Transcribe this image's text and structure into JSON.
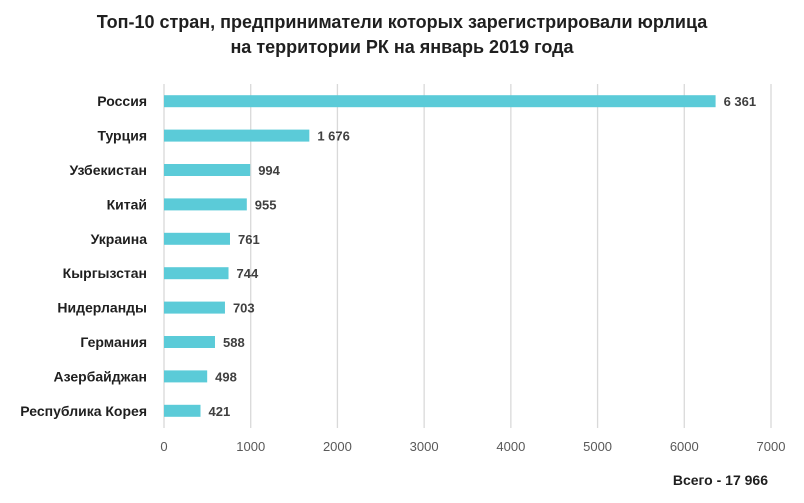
{
  "chart_data": {
    "type": "bar",
    "orientation": "horizontal",
    "title_lines": [
      "Топ-10 стран, предприниматели которых зарегистрировали юрлица",
      "на территории РК на январь 2019 года"
    ],
    "categories": [
      "Россия",
      "Турция",
      "Узбекистан",
      "Китай",
      "Украина",
      "Кыргызстан",
      "Нидерланды",
      "Германия",
      "Азербайджан",
      "Республика Корея"
    ],
    "values": [
      6361,
      1676,
      994,
      955,
      761,
      744,
      703,
      588,
      498,
      421
    ],
    "value_labels": [
      "6 361",
      "1 676",
      "994",
      "955",
      "761",
      "744",
      "703",
      "588",
      "498",
      "421"
    ],
    "xlim": [
      0,
      7000
    ],
    "xticks": [
      0,
      1000,
      2000,
      3000,
      4000,
      5000,
      6000,
      7000
    ],
    "xtick_labels": [
      "0",
      "1000",
      "2000",
      "3000",
      "4000",
      "5000",
      "6000",
      "7000"
    ],
    "grid": "vertical",
    "bar_color": "#5bcbd8",
    "grid_color": "#d9d9d9",
    "note": "Всего - 17 966"
  }
}
